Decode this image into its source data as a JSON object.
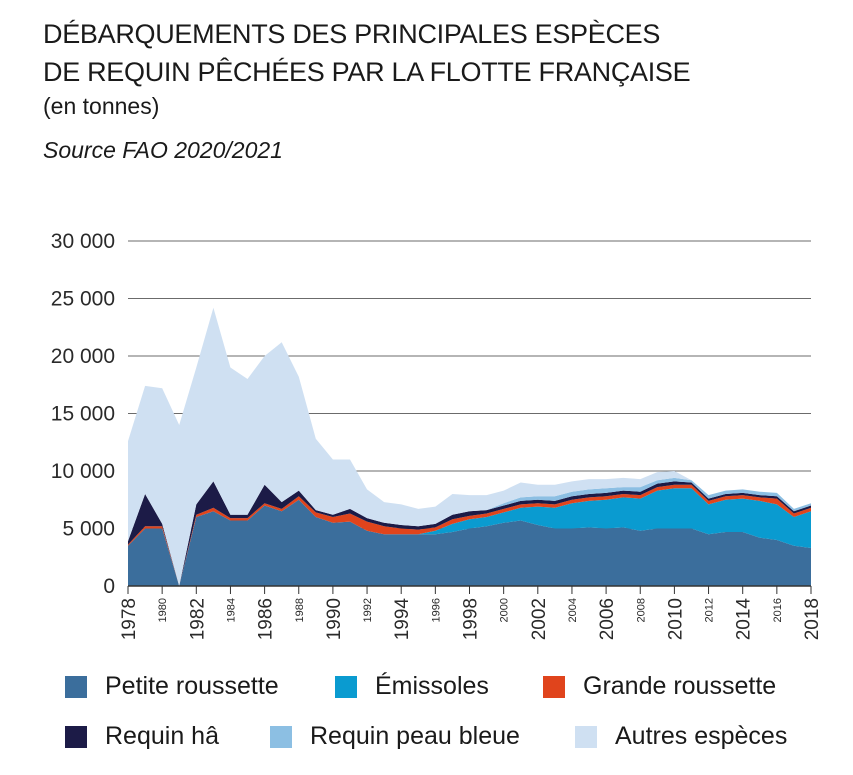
{
  "title_line1": "DÉBARQUEMENTS DES PRINCIPALES ESPÈCES",
  "title_line2": "DE REQUIN PÊCHÉES PAR LA FLOTTE FRANÇAISE",
  "subtitle": "(en tonnes)",
  "source": "Source FAO 2020/2021",
  "colors": {
    "petite": "#3b6e9c",
    "emissoles": "#0a9bd0",
    "grande": "#e0441c",
    "requin_ha": "#1c1b47",
    "peau_bleue": "#8cbfe3",
    "autres": "#cfe0f2"
  },
  "chart_data": {
    "type": "area",
    "stacked": true,
    "ylim": [
      0,
      30000
    ],
    "yticks": [
      "0",
      "5 000",
      "10 000",
      "15 000",
      "20 000",
      "25 000",
      "30 000"
    ],
    "ytick_values": [
      0,
      5000,
      10000,
      15000,
      20000,
      25000,
      30000
    ],
    "x": [
      1978,
      1979,
      1980,
      1981,
      1982,
      1983,
      1984,
      1985,
      1986,
      1987,
      1988,
      1989,
      1990,
      1991,
      1992,
      1993,
      1994,
      1995,
      1996,
      1997,
      1998,
      1999,
      2000,
      2001,
      2002,
      2003,
      2004,
      2005,
      2006,
      2007,
      2008,
      2009,
      2010,
      2011,
      2012,
      2013,
      2014,
      2015,
      2016,
      2017,
      2018
    ],
    "xtick_labels": [
      "1978",
      "1980",
      "1982",
      "1984",
      "1986",
      "1988",
      "1990",
      "1992",
      "1994",
      "1996",
      "1998",
      "2000",
      "2002",
      "2004",
      "2006",
      "2008",
      "2010",
      "2012",
      "2014",
      "2016",
      "2018"
    ],
    "xtick_big": [
      "1978",
      "1982",
      "1986",
      "1990",
      "1994",
      "1998",
      "2002",
      "2006",
      "2010",
      "2014",
      "2018"
    ],
    "series": [
      {
        "name": "Petite roussette",
        "key": "petite",
        "values": [
          3500,
          5000,
          5000,
          0,
          6000,
          6500,
          5700,
          5700,
          7000,
          6500,
          7500,
          6000,
          5500,
          5600,
          4800,
          4500,
          4500,
          4500,
          4500,
          4700,
          5000,
          5200,
          5500,
          5700,
          5300,
          5000,
          5000,
          5100,
          5000,
          5100,
          4800,
          5000,
          5000,
          5000,
          4500,
          4700,
          4700,
          4200,
          4000,
          3500,
          3300
        ]
      },
      {
        "name": "Émissoles",
        "key": "emissoles",
        "values": [
          0,
          0,
          0,
          0,
          0,
          0,
          0,
          0,
          0,
          0,
          0,
          0,
          0,
          0,
          0,
          0,
          0,
          0,
          300,
          700,
          800,
          800,
          900,
          1100,
          1600,
          1800,
          2200,
          2300,
          2500,
          2600,
          2800,
          3300,
          3500,
          3500,
          2600,
          2800,
          2900,
          3200,
          3100,
          2500,
          3200
        ]
      },
      {
        "name": "Grande roussette",
        "key": "grande",
        "values": [
          100,
          200,
          200,
          0,
          200,
          300,
          200,
          200,
          200,
          200,
          300,
          400,
          500,
          700,
          800,
          700,
          500,
          400,
          300,
          400,
          300,
          300,
          300,
          300,
          300,
          300,
          300,
          300,
          300,
          300,
          300,
          300,
          300,
          300,
          300,
          300,
          300,
          300,
          500,
          300,
          300
        ]
      },
      {
        "name": "Requin hâ",
        "key": "requin_ha",
        "values": [
          300,
          2800,
          200,
          0,
          900,
          2300,
          300,
          300,
          1600,
          600,
          500,
          200,
          200,
          400,
          300,
          300,
          300,
          300,
          300,
          400,
          400,
          300,
          300,
          300,
          300,
          300,
          300,
          300,
          300,
          300,
          300,
          300,
          300,
          200,
          200,
          200,
          200,
          200,
          200,
          200,
          200
        ]
      },
      {
        "name": "Requin peau bleue",
        "key": "peau_bleue",
        "values": [
          0,
          0,
          0,
          0,
          0,
          0,
          0,
          0,
          0,
          0,
          0,
          0,
          0,
          0,
          0,
          0,
          0,
          0,
          0,
          0,
          0,
          0,
          200,
          300,
          300,
          400,
          400,
          400,
          400,
          300,
          400,
          300,
          300,
          200,
          300,
          300,
          300,
          300,
          300,
          200,
          200
        ]
      },
      {
        "name": "Autres espèces",
        "key": "autres",
        "values": [
          8700,
          9400,
          11800,
          14000,
          11900,
          15100,
          12800,
          11800,
          11200,
          13900,
          9900,
          6200,
          4800,
          4300,
          2500,
          1800,
          1800,
          1500,
          1500,
          1800,
          1400,
          1300,
          1100,
          1300,
          1000,
          1000,
          900,
          900,
          800,
          800,
          700,
          700,
          600,
          0,
          0,
          0,
          0,
          0,
          0,
          0,
          0
        ]
      }
    ]
  },
  "legend": [
    {
      "label": "Petite roussette",
      "key": "petite"
    },
    {
      "label": "Émissoles",
      "key": "emissoles"
    },
    {
      "label": "Grande roussette",
      "key": "grande"
    },
    {
      "label": "Requin hâ",
      "key": "requin_ha"
    },
    {
      "label": "Requin peau bleue",
      "key": "peau_bleue"
    },
    {
      "label": "Autres espèces",
      "key": "autres"
    }
  ]
}
